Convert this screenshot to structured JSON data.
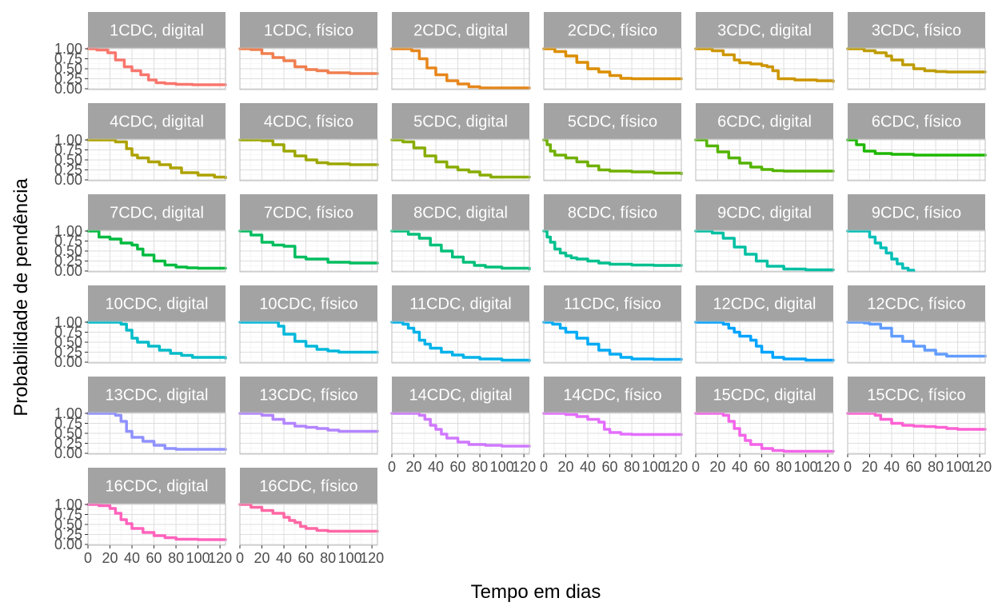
{
  "chart_data": {
    "type": "line",
    "xlabel": "Tempo em dias",
    "ylabel": "Probabilidade de pendência",
    "xlim": [
      0,
      125
    ],
    "ylim": [
      -0.02,
      1.02
    ],
    "x_ticks": [
      "0",
      "20",
      "40",
      "60",
      "80",
      "100",
      "120"
    ],
    "x_tick_values": [
      0,
      20,
      40,
      60,
      80,
      100,
      120
    ],
    "y_ticks": [
      "0.00",
      "0.25",
      "0.50",
      "0.75",
      "1.00"
    ],
    "y_tick_values": [
      0,
      0.25,
      0.5,
      0.75,
      1
    ],
    "grid": true,
    "panels": [
      {
        "label": "1CDC, digital",
        "color": "#F8766D",
        "x": [
          0,
          8,
          18,
          25,
          33,
          40,
          48,
          55,
          62,
          70,
          80,
          95,
          125
        ],
        "y": [
          1.0,
          0.97,
          0.9,
          0.72,
          0.55,
          0.45,
          0.35,
          0.22,
          0.15,
          0.13,
          0.11,
          0.1,
          0.1
        ]
      },
      {
        "label": "1CDC, físico",
        "color": "#F07E4F",
        "x": [
          0,
          10,
          20,
          30,
          40,
          50,
          60,
          70,
          80,
          100,
          125
        ],
        "y": [
          1.0,
          0.98,
          0.88,
          0.78,
          0.7,
          0.55,
          0.48,
          0.45,
          0.4,
          0.38,
          0.38
        ]
      },
      {
        "label": "2CDC, digital",
        "color": "#E7861B",
        "x": [
          0,
          10,
          18,
          25,
          32,
          40,
          50,
          60,
          70,
          80,
          100,
          125
        ],
        "y": [
          1.0,
          1.0,
          0.95,
          0.75,
          0.52,
          0.35,
          0.2,
          0.12,
          0.05,
          0.02,
          0.02,
          0.02
        ]
      },
      {
        "label": "2CDC, físico",
        "color": "#DB8E00",
        "x": [
          0,
          10,
          20,
          30,
          40,
          50,
          60,
          70,
          80,
          100,
          125
        ],
        "y": [
          1.0,
          0.93,
          0.82,
          0.66,
          0.5,
          0.42,
          0.33,
          0.26,
          0.25,
          0.25,
          0.25
        ]
      },
      {
        "label": "3CDC, digital",
        "color": "#CD9600",
        "x": [
          0,
          15,
          25,
          35,
          40,
          50,
          60,
          65,
          70,
          75,
          90,
          110,
          125
        ],
        "y": [
          1.0,
          0.95,
          0.85,
          0.72,
          0.65,
          0.62,
          0.58,
          0.55,
          0.45,
          0.25,
          0.22,
          0.2,
          0.18
        ]
      },
      {
        "label": "3CDC, físico",
        "color": "#BE9C00",
        "x": [
          0,
          15,
          25,
          35,
          40,
          50,
          60,
          70,
          80,
          90,
          125
        ],
        "y": [
          1.0,
          0.95,
          0.9,
          0.82,
          0.72,
          0.6,
          0.5,
          0.45,
          0.43,
          0.42,
          0.42
        ]
      },
      {
        "label": "4CDC, digital",
        "color": "#AEA200",
        "x": [
          0,
          15,
          25,
          35,
          40,
          45,
          55,
          65,
          75,
          85,
          100,
          115,
          125
        ],
        "y": [
          1.0,
          1.0,
          0.95,
          0.78,
          0.62,
          0.55,
          0.45,
          0.38,
          0.3,
          0.18,
          0.12,
          0.07,
          0.05
        ]
      },
      {
        "label": "4CDC, físico",
        "color": "#9CA700",
        "x": [
          0,
          20,
          30,
          40,
          50,
          60,
          70,
          80,
          100,
          125
        ],
        "y": [
          1.0,
          0.98,
          0.88,
          0.72,
          0.6,
          0.5,
          0.43,
          0.4,
          0.38,
          0.38
        ]
      },
      {
        "label": "5CDC, digital",
        "color": "#88AC00",
        "x": [
          0,
          10,
          20,
          30,
          40,
          50,
          60,
          70,
          80,
          90,
          125
        ],
        "y": [
          1.0,
          0.95,
          0.8,
          0.6,
          0.45,
          0.32,
          0.25,
          0.2,
          0.12,
          0.07,
          0.07
        ]
      },
      {
        "label": "5CDC, físico",
        "color": "#70B000",
        "x": [
          0,
          3,
          6,
          10,
          20,
          30,
          40,
          50,
          60,
          80,
          100,
          125
        ],
        "y": [
          1.0,
          0.88,
          0.72,
          0.62,
          0.55,
          0.45,
          0.35,
          0.25,
          0.22,
          0.2,
          0.17,
          0.15
        ]
      },
      {
        "label": "6CDC, digital",
        "color": "#53B400",
        "x": [
          0,
          10,
          20,
          30,
          40,
          50,
          60,
          70,
          80,
          125
        ],
        "y": [
          1.0,
          0.85,
          0.7,
          0.55,
          0.42,
          0.32,
          0.26,
          0.23,
          0.22,
          0.22
        ]
      },
      {
        "label": "6CDC, físico",
        "color": "#1EB800",
        "x": [
          0,
          8,
          15,
          25,
          40,
          60,
          125
        ],
        "y": [
          1.0,
          0.88,
          0.72,
          0.66,
          0.64,
          0.62,
          0.62
        ]
      },
      {
        "label": "7CDC, digital",
        "color": "#00BB3F",
        "x": [
          0,
          10,
          20,
          30,
          40,
          45,
          50,
          60,
          70,
          80,
          90,
          100,
          125
        ],
        "y": [
          1.0,
          0.85,
          0.8,
          0.7,
          0.65,
          0.55,
          0.4,
          0.25,
          0.15,
          0.1,
          0.08,
          0.07,
          0.07
        ]
      },
      {
        "label": "7CDC, físico",
        "color": "#00BD5F",
        "x": [
          0,
          10,
          20,
          30,
          40,
          50,
          60,
          80,
          100,
          125
        ],
        "y": [
          1.0,
          0.9,
          0.72,
          0.65,
          0.62,
          0.35,
          0.3,
          0.22,
          0.2,
          0.2
        ]
      },
      {
        "label": "8CDC, digital",
        "color": "#00BF79",
        "x": [
          0,
          15,
          25,
          35,
          45,
          55,
          65,
          75,
          85,
          100,
          125
        ],
        "y": [
          1.0,
          0.92,
          0.82,
          0.65,
          0.5,
          0.35,
          0.22,
          0.14,
          0.1,
          0.07,
          0.05
        ]
      },
      {
        "label": "8CDC, físico",
        "color": "#00C08E",
        "x": [
          0,
          3,
          6,
          10,
          15,
          20,
          25,
          30,
          40,
          50,
          60,
          80,
          100,
          125
        ],
        "y": [
          1.0,
          0.85,
          0.72,
          0.55,
          0.45,
          0.38,
          0.33,
          0.3,
          0.25,
          0.2,
          0.17,
          0.15,
          0.14,
          0.14
        ]
      },
      {
        "label": "9CDC, digital",
        "color": "#00C0A3",
        "x": [
          0,
          15,
          25,
          35,
          45,
          55,
          65,
          80,
          100,
          125
        ],
        "y": [
          1.0,
          0.95,
          0.82,
          0.6,
          0.42,
          0.25,
          0.12,
          0.05,
          0.03,
          0.03
        ]
      },
      {
        "label": "9CDC, físico",
        "color": "#00BFB7",
        "x": [
          0,
          10,
          20,
          25,
          30,
          35,
          40,
          45,
          50,
          55,
          60
        ],
        "y": [
          1.0,
          1.0,
          0.85,
          0.7,
          0.58,
          0.45,
          0.3,
          0.18,
          0.07,
          0.02,
          0.0
        ]
      },
      {
        "label": "10CDC, digital",
        "color": "#00BCC9",
        "x": [
          0,
          25,
          30,
          35,
          40,
          45,
          55,
          65,
          75,
          85,
          95,
          125
        ],
        "y": [
          1.0,
          1.0,
          0.95,
          0.8,
          0.6,
          0.5,
          0.4,
          0.3,
          0.22,
          0.17,
          0.12,
          0.1
        ]
      },
      {
        "label": "10CDC, físico",
        "color": "#00B8DA",
        "x": [
          0,
          30,
          35,
          40,
          50,
          60,
          70,
          80,
          90,
          125
        ],
        "y": [
          1.0,
          1.0,
          0.9,
          0.7,
          0.52,
          0.4,
          0.32,
          0.28,
          0.25,
          0.25
        ]
      },
      {
        "label": "11CDC, digital",
        "color": "#00B2E9",
        "x": [
          0,
          10,
          15,
          20,
          25,
          30,
          35,
          45,
          55,
          65,
          80,
          100,
          125
        ],
        "y": [
          1.0,
          0.95,
          0.85,
          0.75,
          0.55,
          0.45,
          0.35,
          0.25,
          0.18,
          0.12,
          0.08,
          0.05,
          0.04
        ]
      },
      {
        "label": "11CDC, físico",
        "color": "#00ABF6",
        "x": [
          0,
          8,
          15,
          20,
          30,
          40,
          50,
          60,
          70,
          80,
          100,
          125
        ],
        "y": [
          1.0,
          0.95,
          0.85,
          0.75,
          0.6,
          0.45,
          0.3,
          0.2,
          0.12,
          0.08,
          0.07,
          0.07
        ]
      },
      {
        "label": "12CDC, digital",
        "color": "#00A3FF",
        "x": [
          0,
          20,
          25,
          30,
          35,
          40,
          50,
          55,
          60,
          70,
          80,
          100,
          125
        ],
        "y": [
          1.0,
          1.0,
          0.95,
          0.85,
          0.75,
          0.65,
          0.55,
          0.4,
          0.25,
          0.12,
          0.08,
          0.05,
          0.05
        ]
      },
      {
        "label": "12CDC, físico",
        "color": "#619CFF",
        "x": [
          0,
          15,
          20,
          30,
          40,
          50,
          60,
          70,
          80,
          90,
          100,
          125
        ],
        "y": [
          1.0,
          0.98,
          0.95,
          0.85,
          0.65,
          0.52,
          0.4,
          0.3,
          0.2,
          0.15,
          0.15,
          0.15
        ]
      },
      {
        "label": "13CDC, digital",
        "color": "#8F91FF",
        "x": [
          0,
          15,
          25,
          30,
          35,
          40,
          50,
          60,
          70,
          80,
          100,
          125
        ],
        "y": [
          1.0,
          1.0,
          0.95,
          0.8,
          0.55,
          0.4,
          0.3,
          0.2,
          0.12,
          0.1,
          0.1,
          0.1
        ]
      },
      {
        "label": "13CDC, físico",
        "color": "#B385FF",
        "x": [
          0,
          20,
          30,
          40,
          50,
          60,
          70,
          80,
          90,
          125
        ],
        "y": [
          1.0,
          0.95,
          0.85,
          0.75,
          0.68,
          0.65,
          0.62,
          0.58,
          0.55,
          0.55
        ]
      },
      {
        "label": "14CDC, digital",
        "color": "#CF78FF",
        "x": [
          0,
          15,
          25,
          30,
          35,
          40,
          45,
          50,
          60,
          70,
          85,
          100,
          125
        ],
        "y": [
          1.0,
          1.0,
          0.95,
          0.85,
          0.7,
          0.6,
          0.48,
          0.38,
          0.28,
          0.22,
          0.2,
          0.18,
          0.18
        ]
      },
      {
        "label": "14CDC, físico",
        "color": "#E46EFD",
        "x": [
          0,
          20,
          30,
          40,
          50,
          55,
          60,
          70,
          80,
          125
        ],
        "y": [
          1.0,
          0.97,
          0.92,
          0.85,
          0.78,
          0.6,
          0.52,
          0.48,
          0.47,
          0.47
        ]
      },
      {
        "label": "15CDC, digital",
        "color": "#F365E8",
        "x": [
          0,
          20,
          25,
          30,
          35,
          40,
          45,
          50,
          60,
          70,
          80,
          100,
          125
        ],
        "y": [
          1.0,
          1.0,
          0.95,
          0.8,
          0.62,
          0.45,
          0.32,
          0.22,
          0.12,
          0.07,
          0.05,
          0.05,
          0.05
        ]
      },
      {
        "label": "15CDC, físico",
        "color": "#FD61D3",
        "x": [
          0,
          20,
          25,
          30,
          40,
          50,
          60,
          70,
          80,
          90,
          100,
          125
        ],
        "y": [
          1.0,
          1.0,
          0.95,
          0.85,
          0.75,
          0.7,
          0.68,
          0.67,
          0.65,
          0.62,
          0.6,
          0.6
        ]
      },
      {
        "label": "16CDC, digital",
        "color": "#FF62BC",
        "x": [
          0,
          10,
          20,
          25,
          30,
          35,
          40,
          50,
          60,
          70,
          80,
          100,
          125
        ],
        "y": [
          1.0,
          0.97,
          0.9,
          0.78,
          0.62,
          0.52,
          0.4,
          0.3,
          0.22,
          0.17,
          0.13,
          0.12,
          0.12
        ]
      },
      {
        "label": "16CDC, físico",
        "color": "#FF67A4",
        "x": [
          0,
          10,
          20,
          30,
          40,
          45,
          50,
          55,
          60,
          70,
          80,
          100,
          125
        ],
        "y": [
          1.0,
          0.93,
          0.85,
          0.78,
          0.68,
          0.6,
          0.55,
          0.45,
          0.4,
          0.35,
          0.33,
          0.33,
          0.33
        ]
      }
    ]
  }
}
